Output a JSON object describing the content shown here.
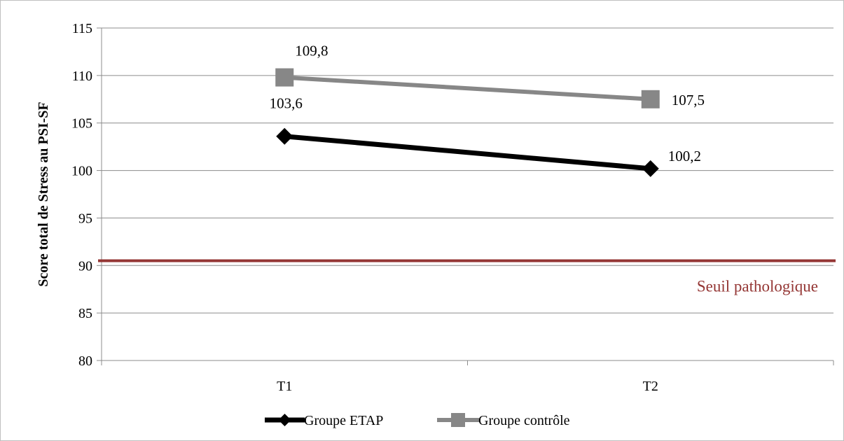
{
  "chart_data": {
    "type": "line",
    "categories": [
      "T1",
      "T2"
    ],
    "series": [
      {
        "name": "Groupe ETAP",
        "values": [
          103.6,
          100.2
        ],
        "value_labels": [
          "103,6",
          "100,2"
        ],
        "color": "#000000",
        "marker": "diamond"
      },
      {
        "name": "Groupe contrôle",
        "values": [
          109.8,
          107.5
        ],
        "value_labels": [
          "109,8",
          "107,5"
        ],
        "color": "#878787",
        "marker": "square"
      }
    ],
    "threshold": {
      "value": 90.5,
      "label": "Seuil pathologique",
      "color": "#943634"
    },
    "ylabel": "Score total de Stress au PSI-SF",
    "xlabel": "",
    "title": "",
    "ylim": [
      80,
      115
    ],
    "yticks": [
      80,
      85,
      90,
      95,
      100,
      105,
      110,
      115
    ],
    "grid": true,
    "legend_position": "bottom"
  }
}
